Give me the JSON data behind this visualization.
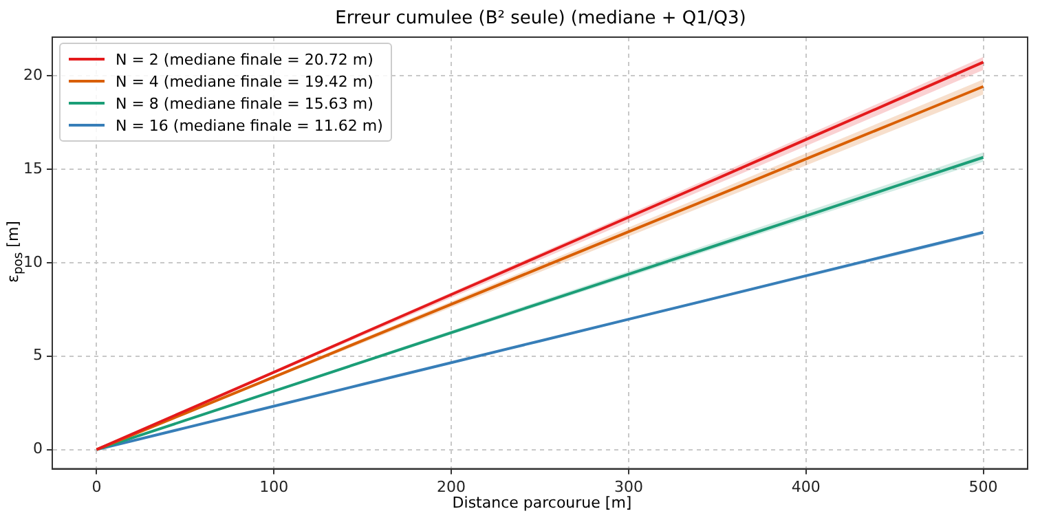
{
  "chart_data": {
    "type": "line",
    "title": "Erreur cumulee (B² seule) (mediane + Q1/Q3)",
    "xlabel": "Distance parcourue [m]",
    "ylabel": "ε$_{pos}$ [m]",
    "x": [
      0,
      50,
      100,
      150,
      200,
      250,
      300,
      350,
      400,
      450,
      500
    ],
    "series": [
      {
        "name": "N = 2 (mediane finale = 20.72 m)",
        "color": "#e41a1c",
        "values": [
          0,
          2.07,
          4.14,
          6.22,
          8.29,
          10.36,
          12.43,
          14.5,
          16.58,
          18.65,
          20.72
        ],
        "lower": [
          0,
          2.03,
          4.06,
          6.09,
          8.12,
          10.15,
          12.18,
          14.21,
          16.24,
          18.27,
          20.3
        ],
        "upper": [
          0,
          2.1,
          4.2,
          6.3,
          8.4,
          10.5,
          12.6,
          14.7,
          16.8,
          18.9,
          21.0
        ]
      },
      {
        "name": "N = 4 (mediane finale = 19.42 m)",
        "color": "#d95f02",
        "values": [
          0,
          1.94,
          3.88,
          5.83,
          7.77,
          9.71,
          11.65,
          13.59,
          15.54,
          17.48,
          19.42
        ],
        "lower": [
          0,
          1.9,
          3.8,
          5.7,
          7.6,
          9.5,
          11.4,
          13.3,
          15.2,
          17.1,
          19.0
        ],
        "upper": [
          0,
          1.98,
          3.96,
          5.94,
          7.92,
          9.9,
          11.88,
          13.86,
          15.84,
          17.82,
          19.8
        ]
      },
      {
        "name": "N = 8 (mediane finale = 15.63 m)",
        "color": "#1b9e77",
        "values": [
          0,
          1.56,
          3.13,
          4.69,
          6.25,
          7.82,
          9.38,
          10.94,
          12.5,
          14.07,
          15.63
        ],
        "lower": [
          0,
          1.54,
          3.08,
          4.62,
          6.16,
          7.7,
          9.24,
          10.78,
          12.32,
          13.86,
          15.4
        ],
        "upper": [
          0,
          1.59,
          3.18,
          4.77,
          6.36,
          7.95,
          9.54,
          11.13,
          12.72,
          14.31,
          15.9
        ]
      },
      {
        "name": "N = 16 (mediane finale = 11.62 m)",
        "color": "#377eb8",
        "values": [
          0,
          1.16,
          2.32,
          3.49,
          4.65,
          5.81,
          6.97,
          8.13,
          9.3,
          10.46,
          11.62
        ],
        "lower": [
          0,
          1.15,
          2.3,
          3.45,
          4.6,
          5.75,
          6.9,
          8.05,
          9.2,
          10.35,
          11.5
        ],
        "upper": [
          0,
          1.17,
          2.34,
          3.51,
          4.68,
          5.85,
          7.02,
          8.19,
          9.36,
          10.53,
          11.7
        ]
      }
    ],
    "xlim": [
      -25,
      525
    ],
    "ylim": [
      -1.03,
      22.06
    ],
    "xticks": [
      0,
      100,
      200,
      300,
      400,
      500
    ],
    "yticks": [
      0,
      5,
      10,
      15,
      20
    ],
    "grid": true,
    "legend": "top left",
    "marker": "none",
    "line_style": "solid"
  }
}
